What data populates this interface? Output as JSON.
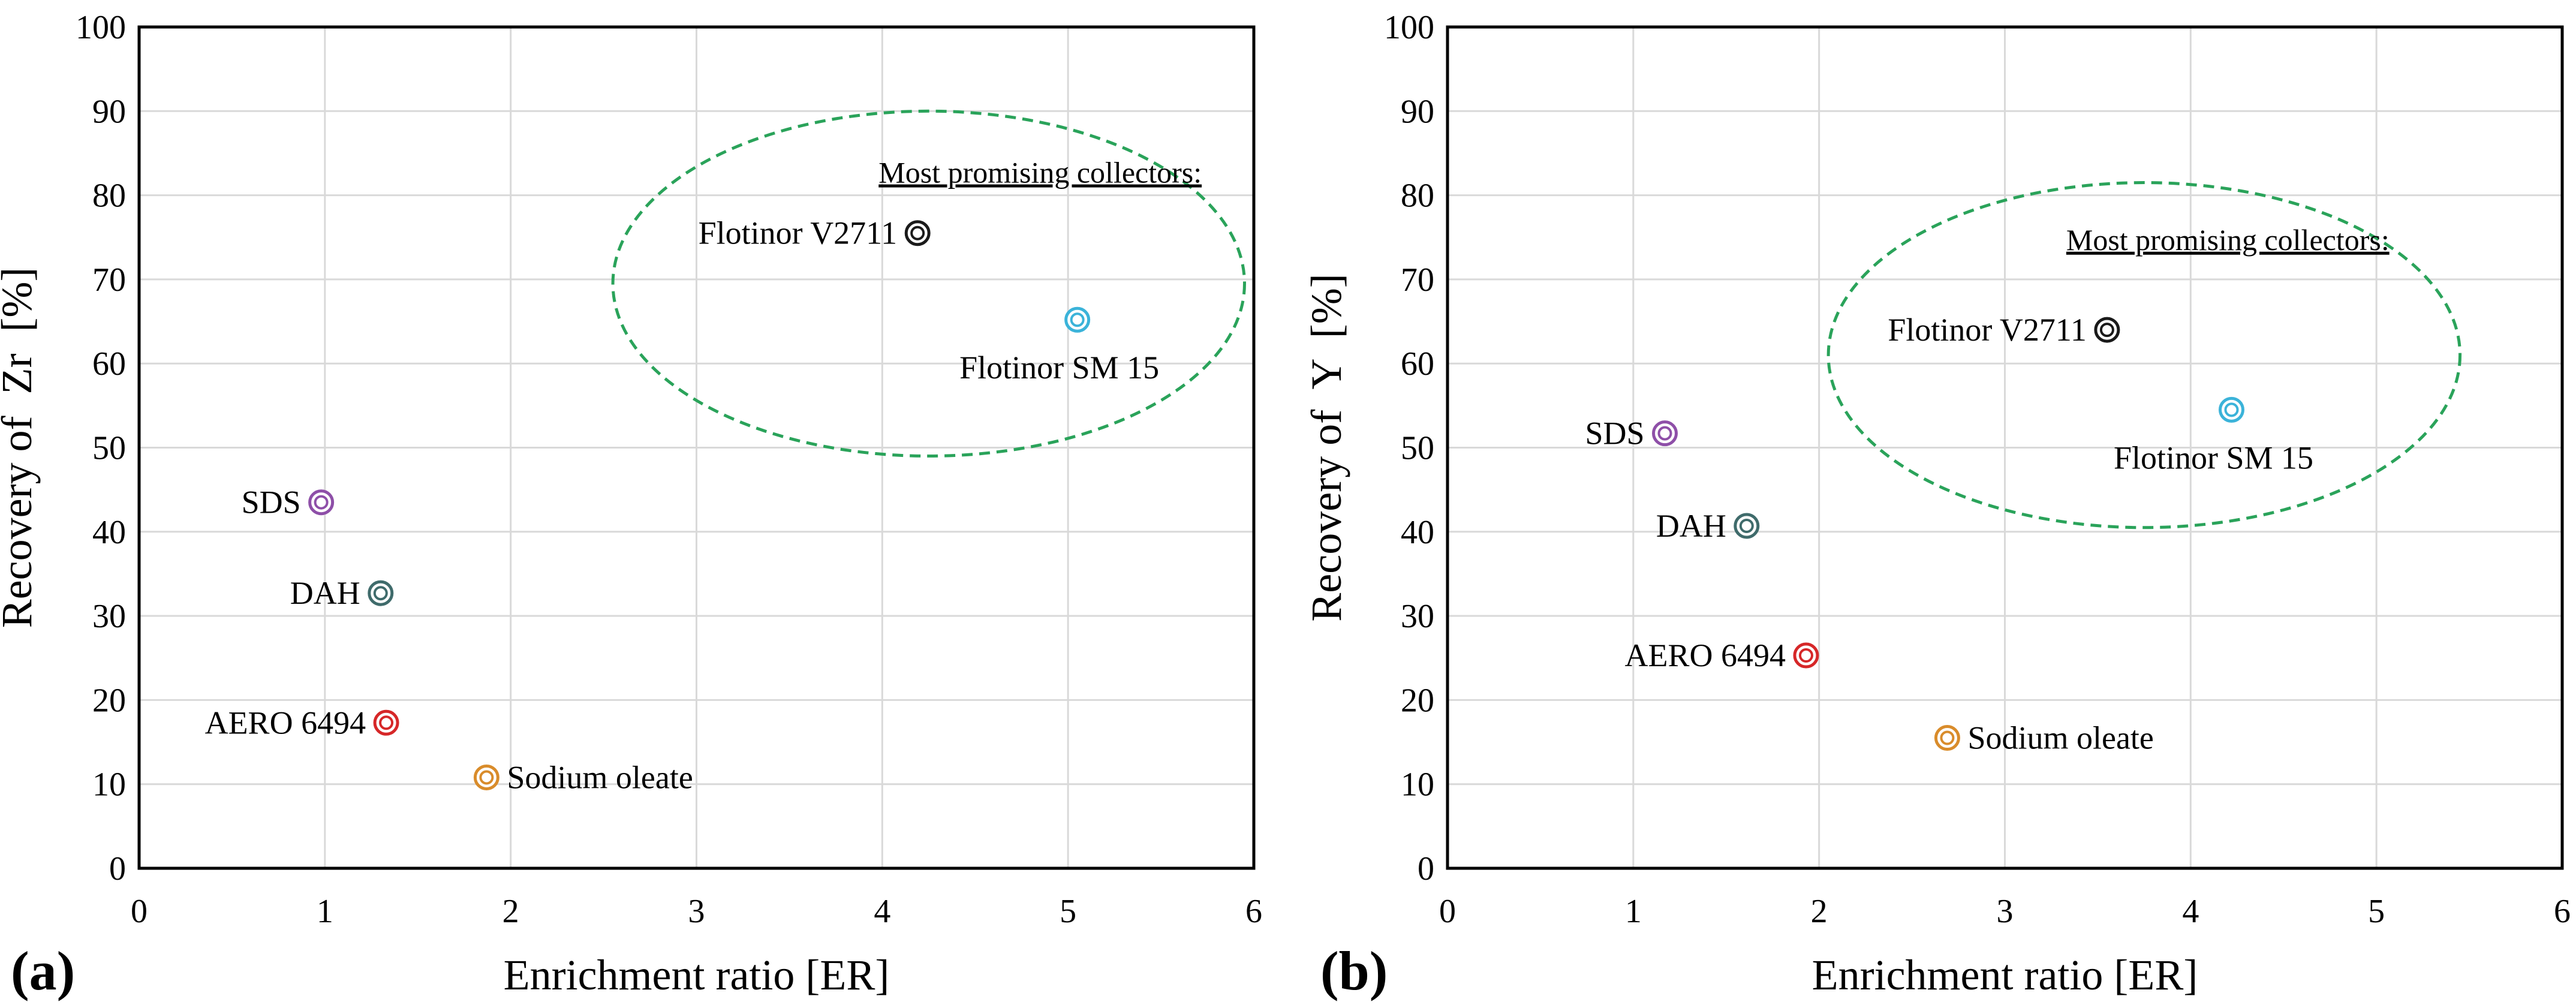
{
  "chart_data": [
    {
      "type": "scatter",
      "panel_label": "(a)",
      "xlabel": "Enrichment ratio [ER]",
      "ylabel": "Recovery of  Zr  [%]",
      "xlim": [
        0,
        6
      ],
      "ylim": [
        0,
        100
      ],
      "xticks": [
        "0",
        "1",
        "2",
        "3",
        "4",
        "5",
        "6"
      ],
      "yticks": [
        "0",
        "10",
        "20",
        "30",
        "40",
        "50",
        "60",
        "70",
        "80",
        "90",
        "100"
      ],
      "grid": true,
      "points": [
        {
          "name": "SDS",
          "x": 0.98,
          "y": 43.5,
          "color": "#8e4fa8",
          "label_side": "left"
        },
        {
          "name": "DAH",
          "x": 1.3,
          "y": 32.7,
          "color": "#3f6b6b",
          "label_side": "left"
        },
        {
          "name": "AERO 6494",
          "x": 1.33,
          "y": 17.3,
          "color": "#d62728",
          "label_side": "left"
        },
        {
          "name": "Sodium oleate",
          "x": 1.87,
          "y": 10.8,
          "color": "#d98c2b",
          "label_side": "right"
        },
        {
          "name": "Flotinor V2711",
          "x": 4.19,
          "y": 75.5,
          "color": "#1a1a1a",
          "label_side": "left"
        },
        {
          "name": "Flotinor SM 15",
          "x": 5.05,
          "y": 65.2,
          "color": "#3bb3d9",
          "label_side": "below"
        }
      ],
      "annotation": {
        "text": "Most promising collectors:",
        "x": 4.85,
        "y": 81.5
      },
      "ellipse": {
        "cx": 4.25,
        "cy": 69.5,
        "rx": 1.7,
        "ry": 20.5,
        "color": "#2aa35a"
      }
    },
    {
      "type": "scatter",
      "panel_label": "(b)",
      "xlabel": "Enrichment ratio [ER]",
      "ylabel": "Recovery of  Y  [%]",
      "xlim": [
        0,
        6
      ],
      "ylim": [
        0,
        100
      ],
      "xticks": [
        "0",
        "1",
        "2",
        "3",
        "4",
        "5",
        "6"
      ],
      "yticks": [
        "0",
        "10",
        "20",
        "30",
        "40",
        "50",
        "60",
        "70",
        "80",
        "90",
        "100"
      ],
      "grid": true,
      "points": [
        {
          "name": "SDS",
          "x": 1.17,
          "y": 51.7,
          "color": "#8e4fa8",
          "label_side": "left"
        },
        {
          "name": "DAH",
          "x": 1.61,
          "y": 40.7,
          "color": "#3f6b6b",
          "label_side": "left"
        },
        {
          "name": "AERO 6494",
          "x": 1.93,
          "y": 25.3,
          "color": "#d62728",
          "label_side": "left"
        },
        {
          "name": "Sodium oleate",
          "x": 2.69,
          "y": 15.5,
          "color": "#d98c2b",
          "label_side": "right"
        },
        {
          "name": "Flotinor V2711",
          "x": 3.55,
          "y": 64.0,
          "color": "#1a1a1a",
          "label_side": "left"
        },
        {
          "name": "Flotinor SM 15",
          "x": 4.22,
          "y": 54.5,
          "color": "#3bb3d9",
          "label_side": "below"
        }
      ],
      "annotation": {
        "text": "Most promising collectors:",
        "x": 4.2,
        "y": 73.5
      },
      "ellipse": {
        "cx": 3.75,
        "cy": 61.0,
        "rx": 1.7,
        "ry": 20.5,
        "color": "#2aa35a"
      }
    }
  ]
}
